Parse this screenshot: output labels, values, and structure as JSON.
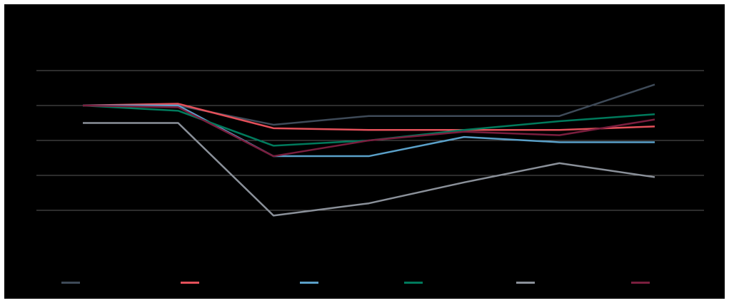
{
  "chart_data": {
    "type": "line",
    "title": "",
    "xlabel": "",
    "ylabel": "",
    "x": [
      1,
      2,
      3,
      4,
      5,
      6,
      7
    ],
    "ylim": [
      0,
      7
    ],
    "gridlines": [
      2,
      3,
      4,
      5,
      6
    ],
    "grid": true,
    "legend": "bottom",
    "series": [
      {
        "color": "#3e4a58",
        "values": [
          5.0,
          5.0,
          4.45,
          4.7,
          4.7,
          4.7,
          5.6
        ]
      },
      {
        "color": "#e4505a",
        "values": [
          5.0,
          5.05,
          4.35,
          4.3,
          4.3,
          4.3,
          4.4
        ]
      },
      {
        "color": "#5aa0c8",
        "values": [
          5.0,
          5.0,
          3.55,
          3.55,
          4.1,
          3.95,
          3.95
        ]
      },
      {
        "color": "#007a5c",
        "values": [
          5.0,
          4.85,
          3.85,
          4.0,
          4.3,
          4.55,
          4.75
        ]
      },
      {
        "color": "#8a9099",
        "values": [
          4.5,
          4.5,
          1.85,
          2.2,
          2.8,
          3.35,
          2.95
        ]
      },
      {
        "color": "#7a1e3e",
        "values": [
          5.0,
          4.95,
          3.55,
          4.0,
          4.25,
          4.15,
          4.6
        ]
      }
    ]
  }
}
